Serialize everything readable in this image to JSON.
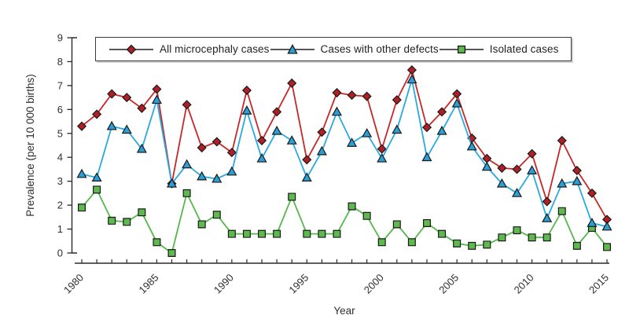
{
  "figure": {
    "y_ticks": [
      0,
      1,
      2,
      3,
      4,
      5,
      6,
      7,
      8,
      9
    ],
    "x_tick_labels": [
      "1980",
      "1985",
      "1990",
      "1995",
      "2000",
      "2005",
      "2010",
      "2015"
    ],
    "axis_color": "#2a2a2a"
  },
  "legend": {
    "items": [
      {
        "label": "All microcephaly cases",
        "marker": "diamond"
      },
      {
        "label": "Cases with other defects",
        "marker": "triangle"
      },
      {
        "label": "Isolated cases",
        "marker": "square"
      }
    ]
  },
  "chart_data": {
    "type": "line",
    "title": "",
    "xlabel": "Year",
    "ylabel": "Prevalence (per 10 000 births)",
    "x": [
      1980,
      1981,
      1982,
      1983,
      1984,
      1985,
      1986,
      1987,
      1988,
      1989,
      1990,
      1991,
      1992,
      1993,
      1994,
      1995,
      1996,
      1997,
      1998,
      1999,
      2000,
      2001,
      2002,
      2003,
      2004,
      2005,
      2006,
      2007,
      2008,
      2009,
      2010,
      2011,
      2012,
      2013,
      2014,
      2015
    ],
    "xlim": [
      1979,
      2016
    ],
    "ylim": [
      0,
      9
    ],
    "grid": false,
    "legend_position": "top-inside",
    "series": [
      {
        "name": "All microcephaly cases",
        "marker": "diamond",
        "color": "#c62828",
        "marker_fill": "#b01f25",
        "values": [
          5.3,
          5.8,
          6.65,
          6.5,
          6.05,
          6.85,
          2.9,
          6.2,
          4.4,
          4.65,
          4.2,
          6.8,
          4.7,
          5.9,
          7.1,
          3.9,
          5.05,
          6.7,
          6.6,
          6.55,
          4.35,
          6.4,
          7.65,
          5.25,
          5.9,
          6.65,
          4.8,
          3.95,
          3.55,
          3.5,
          4.15,
          2.15,
          4.7,
          3.45,
          2.5,
          1.4
        ]
      },
      {
        "name": "Cases with other defects",
        "marker": "triangle",
        "color": "#29a9e0",
        "marker_fill": "#2b9fd6",
        "values": [
          3.3,
          3.15,
          5.3,
          5.15,
          4.35,
          6.4,
          2.9,
          3.7,
          3.2,
          3.1,
          3.4,
          5.95,
          3.95,
          5.1,
          4.7,
          3.15,
          4.25,
          5.9,
          4.6,
          5.0,
          3.95,
          5.15,
          7.25,
          4.0,
          5.1,
          6.25,
          4.45,
          3.6,
          2.9,
          2.5,
          3.45,
          1.45,
          2.9,
          3.0,
          1.25,
          1.1
        ]
      },
      {
        "name": "Isolated cases",
        "marker": "square",
        "color": "#56b74c",
        "marker_fill": "#5eb94e",
        "values": [
          1.9,
          2.65,
          1.35,
          1.3,
          1.7,
          0.45,
          0.0,
          2.5,
          1.2,
          1.6,
          0.8,
          0.8,
          0.8,
          0.8,
          2.35,
          0.8,
          0.8,
          0.8,
          1.95,
          1.55,
          0.45,
          1.2,
          0.45,
          1.25,
          0.8,
          0.4,
          0.3,
          0.35,
          0.65,
          0.95,
          0.65,
          0.65,
          1.75,
          0.3,
          1.05,
          0.25
        ]
      }
    ]
  }
}
